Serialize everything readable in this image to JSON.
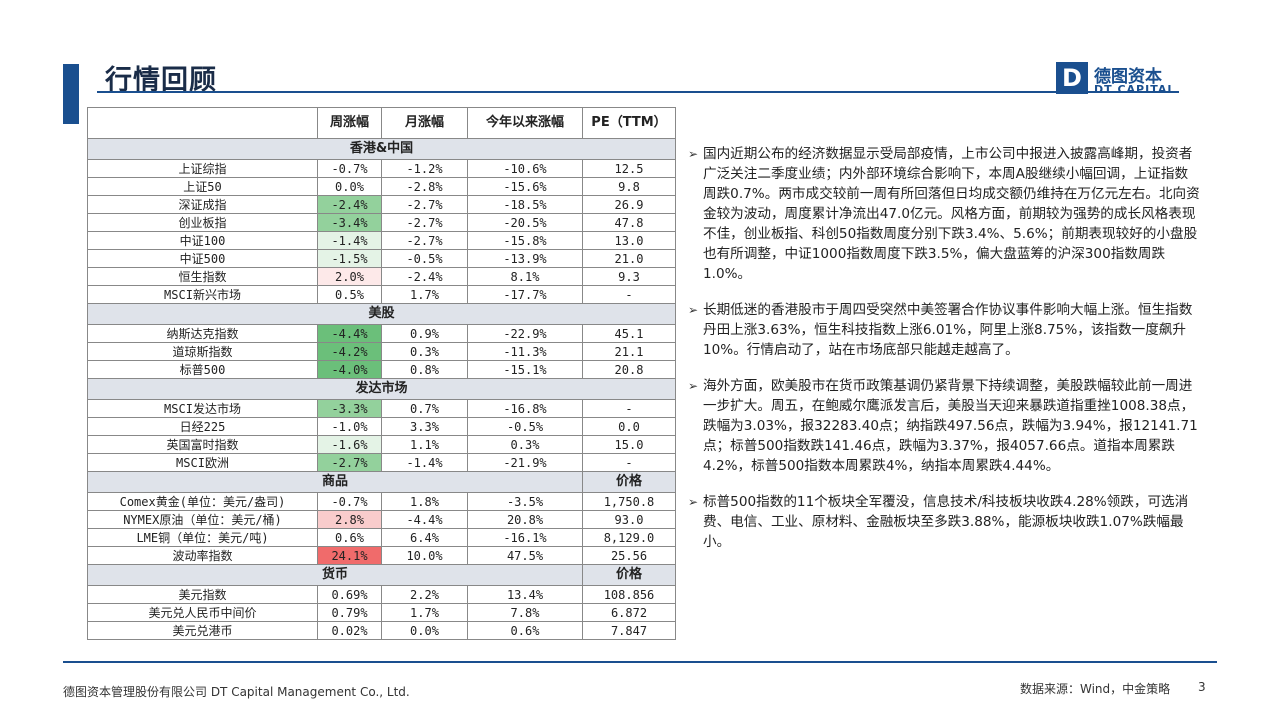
{
  "header": {
    "title": "行情回顾",
    "logo_mark": "D",
    "logo_cn": "德图资本",
    "logo_en": "DT CAPITAL"
  },
  "table": {
    "columns": [
      "",
      "周涨幅",
      "月涨幅",
      "今年以来涨幅",
      "PE（TTM）"
    ],
    "sections": [
      {
        "label": "香港&中国",
        "rows": [
          {
            "name": "上证综指",
            "week": "-0.7%",
            "month": "-1.2%",
            "ytd": "-10.6%",
            "pe": "12.5",
            "shade": ""
          },
          {
            "name": "上证50",
            "week": "0.0%",
            "month": "-2.8%",
            "ytd": "-15.6%",
            "pe": "9.8",
            "shade": ""
          },
          {
            "name": "深证成指",
            "week": "-2.4%",
            "month": "-2.7%",
            "ytd": "-18.5%",
            "pe": "26.9",
            "shade": "g3"
          },
          {
            "name": "创业板指",
            "week": "-3.4%",
            "month": "-2.7%",
            "ytd": "-20.5%",
            "pe": "47.8",
            "shade": "g3"
          },
          {
            "name": "中证100",
            "week": "-1.4%",
            "month": "-2.7%",
            "ytd": "-15.8%",
            "pe": "13.0",
            "shade": "g1"
          },
          {
            "name": "中证500",
            "week": "-1.5%",
            "month": "-0.5%",
            "ytd": "-13.9%",
            "pe": "21.0",
            "shade": "g1"
          },
          {
            "name": "恒生指数",
            "week": "2.0%",
            "month": "-2.4%",
            "ytd": "8.1%",
            "pe": "9.3",
            "shade": "r1"
          },
          {
            "name": "MSCI新兴市场",
            "week": "0.5%",
            "month": "1.7%",
            "ytd": "-17.7%",
            "pe": "-",
            "shade": ""
          }
        ]
      },
      {
        "label": "美股",
        "rows": [
          {
            "name": "纳斯达克指数",
            "week": "-4.4%",
            "month": "0.9%",
            "ytd": "-22.9%",
            "pe": "45.1",
            "shade": "g4"
          },
          {
            "name": "道琼斯指数",
            "week": "-4.2%",
            "month": "0.3%",
            "ytd": "-11.3%",
            "pe": "21.1",
            "shade": "g4"
          },
          {
            "name": "标普500",
            "week": "-4.0%",
            "month": "0.8%",
            "ytd": "-15.1%",
            "pe": "20.8",
            "shade": "g4"
          }
        ]
      },
      {
        "label": "发达市场",
        "rows": [
          {
            "name": "MSCI发达市场",
            "week": "-3.3%",
            "month": "0.7%",
            "ytd": "-16.8%",
            "pe": "-",
            "shade": "g3"
          },
          {
            "name": "日经225",
            "week": "-1.0%",
            "month": "3.3%",
            "ytd": "-0.5%",
            "pe": "0.0",
            "shade": ""
          },
          {
            "name": "英国富时指数",
            "week": "-1.6%",
            "month": "1.1%",
            "ytd": "0.3%",
            "pe": "15.0",
            "shade": "g1"
          },
          {
            "name": "MSCI欧洲",
            "week": "-2.7%",
            "month": "-1.4%",
            "ytd": "-21.9%",
            "pe": "-",
            "shade": "g3"
          }
        ]
      },
      {
        "label": "商品",
        "price_label": "价格",
        "rows": [
          {
            "name": "Comex黄金(单位：美元/盎司)",
            "week": "-0.7%",
            "month": "1.8%",
            "ytd": "-3.5%",
            "pe": "1,750.8",
            "shade": ""
          },
          {
            "name": "NYMEX原油（单位：美元/桶)",
            "week": "2.8%",
            "month": "-4.4%",
            "ytd": "20.8%",
            "pe": "93.0",
            "shade": "r2"
          },
          {
            "name": "LME铜（单位：美元/吨)",
            "week": "0.6%",
            "month": "6.4%",
            "ytd": "-16.1%",
            "pe": "8,129.0",
            "shade": ""
          },
          {
            "name": "波动率指数",
            "week": "24.1%",
            "month": "10.0%",
            "ytd": "47.5%",
            "pe": "25.56",
            "shade": "r3"
          }
        ]
      },
      {
        "label": "货币",
        "price_label": "价格",
        "rows": [
          {
            "name": "美元指数",
            "week": "0.69%",
            "month": "2.2%",
            "ytd": "13.4%",
            "pe": "108.856",
            "shade": ""
          },
          {
            "name": "美元兑人民币中间价",
            "week": "0.79%",
            "month": "1.7%",
            "ytd": "7.8%",
            "pe": "6.872",
            "shade": ""
          },
          {
            "name": "美元兑港币",
            "week": "0.02%",
            "month": "0.0%",
            "ytd": "0.6%",
            "pe": "7.847",
            "shade": ""
          }
        ]
      }
    ]
  },
  "bullets": [
    "国内近期公布的经济数据显示受局部疫情，上市公司中报进入披露高峰期，投资者广泛关注二季度业绩；内外部环境综合影响下，本周A股继续小幅回调，上证指数周跌0.7%。两市成交较前一周有所回落但日均成交额仍维持在万亿元左右。北向资金较为波动，周度累计净流出47.0亿元。风格方面，前期较为强势的成长风格表现不佳，创业板指、科创50指数周度分别下跌3.4%、5.6%；前期表现较好的小盘股也有所调整，中证1000指数周度下跌3.5%，偏大盘蓝筹的沪深300指数周跌1.0%。",
    "长期低迷的香港股市于周四受突然中美签署合作协议事件影响大幅上涨。恒生指数丹田上涨3.63%，恒生科技指数上涨6.01%，阿里上涨8.75%，该指数一度飙升10%。行情启动了，站在市场底部只能越走越高了。",
    "海外方面，欧美股市在货币政策基调仍紧背景下持续调整，美股跌幅较此前一周进一步扩大。周五，在鲍威尔鹰派发言后，美股当天迎来暴跌道指重挫1008.38点，跌幅为3.03%，报32283.40点；纳指跌497.56点，跌幅为3.94%，报12141.71点；标普500指数跌141.46点，跌幅为3.37%，报4057.66点。道指本周累跌4.2%，标普500指数本周累跌4%，纳指本周累跌4.44%。",
    "标普500指数的11个板块全军覆没，信息技术/科技板块收跌4.28%领跌，可选消费、电信、工业、原材料、金融板块至多跌3.88%，能源板块收跌1.07%跌幅最小。"
  ],
  "footer": {
    "company": "德图资本管理股份有限公司  DT Capital  Management  Co., Ltd.",
    "source": "数据来源：Wind，中金策略",
    "page": "3"
  }
}
